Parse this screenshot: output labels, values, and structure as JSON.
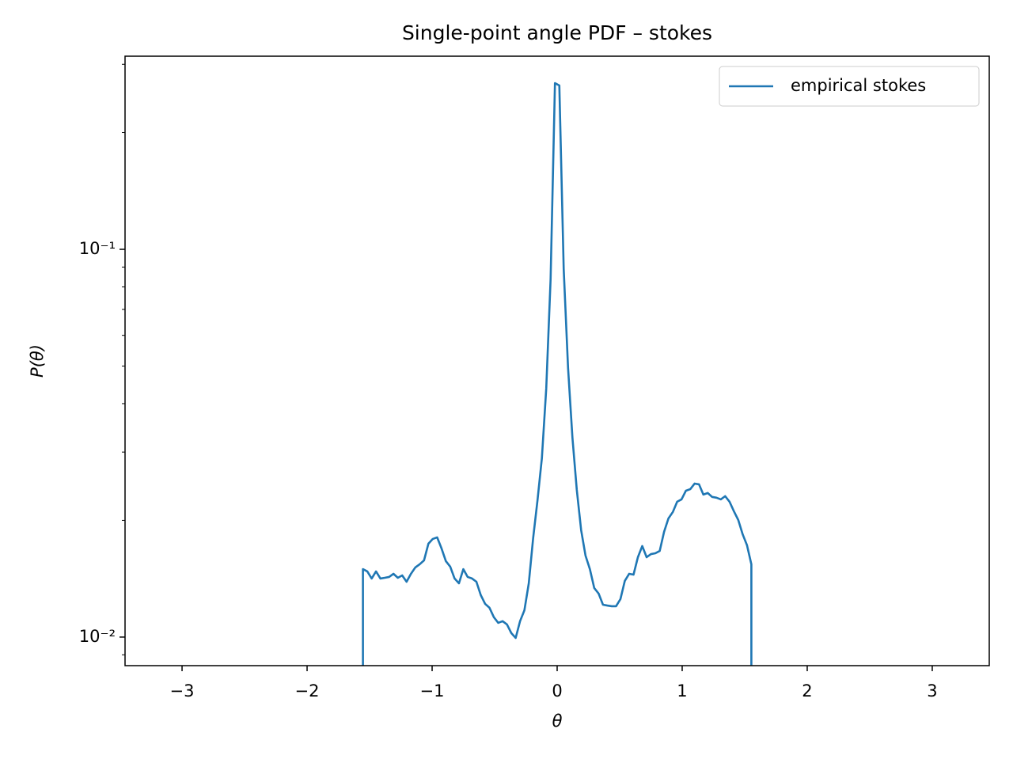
{
  "chart_data": {
    "type": "line",
    "title": "Single-point angle PDF – stokes",
    "xlabel": "θ",
    "ylabel": "P(θ)",
    "x": [
      -1.5533,
      -1.5533,
      -1.5184,
      -1.4835,
      -1.4486,
      -1.4137,
      -1.3788,
      -1.3439,
      -1.309,
      -1.2741,
      -1.2392,
      -1.2043,
      -1.1694,
      -1.1345,
      -1.0996,
      -1.0647,
      -1.0297,
      -0.9948,
      -0.9599,
      -0.925,
      -0.8901,
      -0.8552,
      -0.8203,
      -0.7854,
      -0.7505,
      -0.7156,
      -0.6807,
      -0.6458,
      -0.6109,
      -0.576,
      -0.5411,
      -0.5061,
      -0.4712,
      -0.4363,
      -0.4014,
      -0.3665,
      -0.3316,
      -0.2967,
      -0.2618,
      -0.2269,
      -0.192,
      -0.1571,
      -0.1222,
      -0.0873,
      -0.0524,
      -0.0175,
      0.0175,
      0.0524,
      0.0873,
      0.1222,
      0.1571,
      0.192,
      0.2269,
      0.2618,
      0.2967,
      0.3316,
      0.3665,
      0.4014,
      0.4363,
      0.4712,
      0.5061,
      0.5411,
      0.576,
      0.6109,
      0.6458,
      0.6807,
      0.7156,
      0.7505,
      0.7854,
      0.8203,
      0.8552,
      0.8901,
      0.925,
      0.9599,
      0.9948,
      1.0297,
      1.0647,
      1.0996,
      1.1345,
      1.1694,
      1.2043,
      1.2392,
      1.2741,
      1.309,
      1.3439,
      1.3788,
      1.4137,
      1.4486,
      1.4835,
      1.5184,
      1.5533,
      1.5533
    ],
    "series": [
      {
        "name": "empirical stokes",
        "color": "#1f77b4",
        "values": [
          0,
          0.01497,
          0.01477,
          0.01416,
          0.01477,
          0.01416,
          0.01422,
          0.01429,
          0.01456,
          0.01422,
          0.01442,
          0.01389,
          0.01456,
          0.01512,
          0.01541,
          0.01577,
          0.01741,
          0.01791,
          0.01808,
          0.01694,
          0.0157,
          0.01519,
          0.01416,
          0.01376,
          0.01497,
          0.01429,
          0.01416,
          0.01389,
          0.01283,
          0.01218,
          0.0119,
          0.01125,
          0.01088,
          0.01099,
          0.01078,
          0.01024,
          0.00995,
          0.01099,
          0.01173,
          0.01376,
          0.018,
          0.02254,
          0.02891,
          0.04373,
          0.08365,
          0.2683,
          0.2645,
          0.0889,
          0.04942,
          0.03268,
          0.02396,
          0.01886,
          0.01622,
          0.01497,
          0.01338,
          0.01295,
          0.01212,
          0.01206,
          0.01201,
          0.01201,
          0.01253,
          0.01396,
          0.01456,
          0.01449,
          0.01607,
          0.01717,
          0.01607,
          0.01637,
          0.01645,
          0.01668,
          0.01868,
          0.02023,
          0.02101,
          0.02234,
          0.02265,
          0.02385,
          0.02407,
          0.02488,
          0.02477,
          0.02331,
          0.02353,
          0.02299,
          0.02288,
          0.02265,
          0.02309,
          0.02234,
          0.02111,
          0.02004,
          0.01842,
          0.01725,
          0.01541,
          0
        ]
      }
    ],
    "xlim": [
      -3.456,
      3.456
    ],
    "xticks": [
      {
        "value": -3,
        "label": "−3"
      },
      {
        "value": -2,
        "label": "−2"
      },
      {
        "value": -1,
        "label": "−1"
      },
      0,
      1,
      2,
      3
    ],
    "ylim": [
      0.00844,
      0.3148
    ],
    "yscale": "log",
    "yticks": [
      {
        "value": 0.01,
        "label": "10⁻²"
      },
      {
        "value": 0.1,
        "label": "10⁻¹"
      }
    ],
    "yminorticks": [
      0.009,
      0.02,
      0.03,
      0.04,
      0.05,
      0.06,
      0.07,
      0.08,
      0.09,
      0.2,
      0.3
    ],
    "legend": "upper right",
    "grid": false
  }
}
